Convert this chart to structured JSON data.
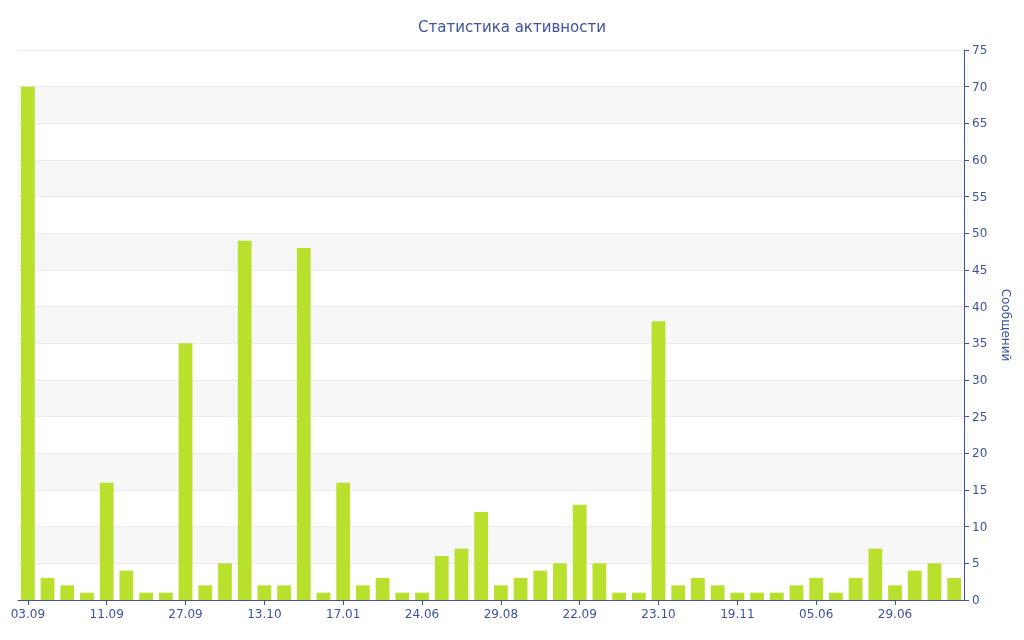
{
  "chart_data": {
    "type": "bar",
    "title": "Статистика активности",
    "ylabel": "Сообщений",
    "categories": [
      "03.09",
      null,
      null,
      null,
      "11.09",
      null,
      null,
      null,
      "27.09",
      null,
      null,
      null,
      "13.10",
      null,
      null,
      null,
      "17.01",
      null,
      null,
      null,
      "24.06",
      null,
      null,
      null,
      "29.08",
      null,
      null,
      null,
      "22.09",
      null,
      null,
      null,
      "23.10",
      null,
      null,
      null,
      "19.11",
      null,
      null,
      null,
      "05.06",
      null,
      null,
      null,
      "29.06",
      null,
      null,
      null
    ],
    "values": [
      70,
      3,
      2,
      1,
      16,
      4,
      1,
      1,
      35,
      2,
      5,
      49,
      2,
      2,
      48,
      1,
      16,
      2,
      3,
      1,
      1,
      6,
      7,
      12,
      2,
      3,
      4,
      5,
      13,
      5,
      1,
      1,
      38,
      2,
      3,
      2,
      1,
      1,
      1,
      2,
      3,
      1,
      3,
      7,
      2,
      4,
      5,
      3
    ],
    "color": "#b8e02c",
    "ylim": [
      0,
      75
    ],
    "yticks": [
      0,
      5,
      10,
      15,
      20,
      25,
      30,
      35,
      40,
      45,
      50,
      55,
      60,
      65,
      70,
      75
    ],
    "grid": "y"
  }
}
